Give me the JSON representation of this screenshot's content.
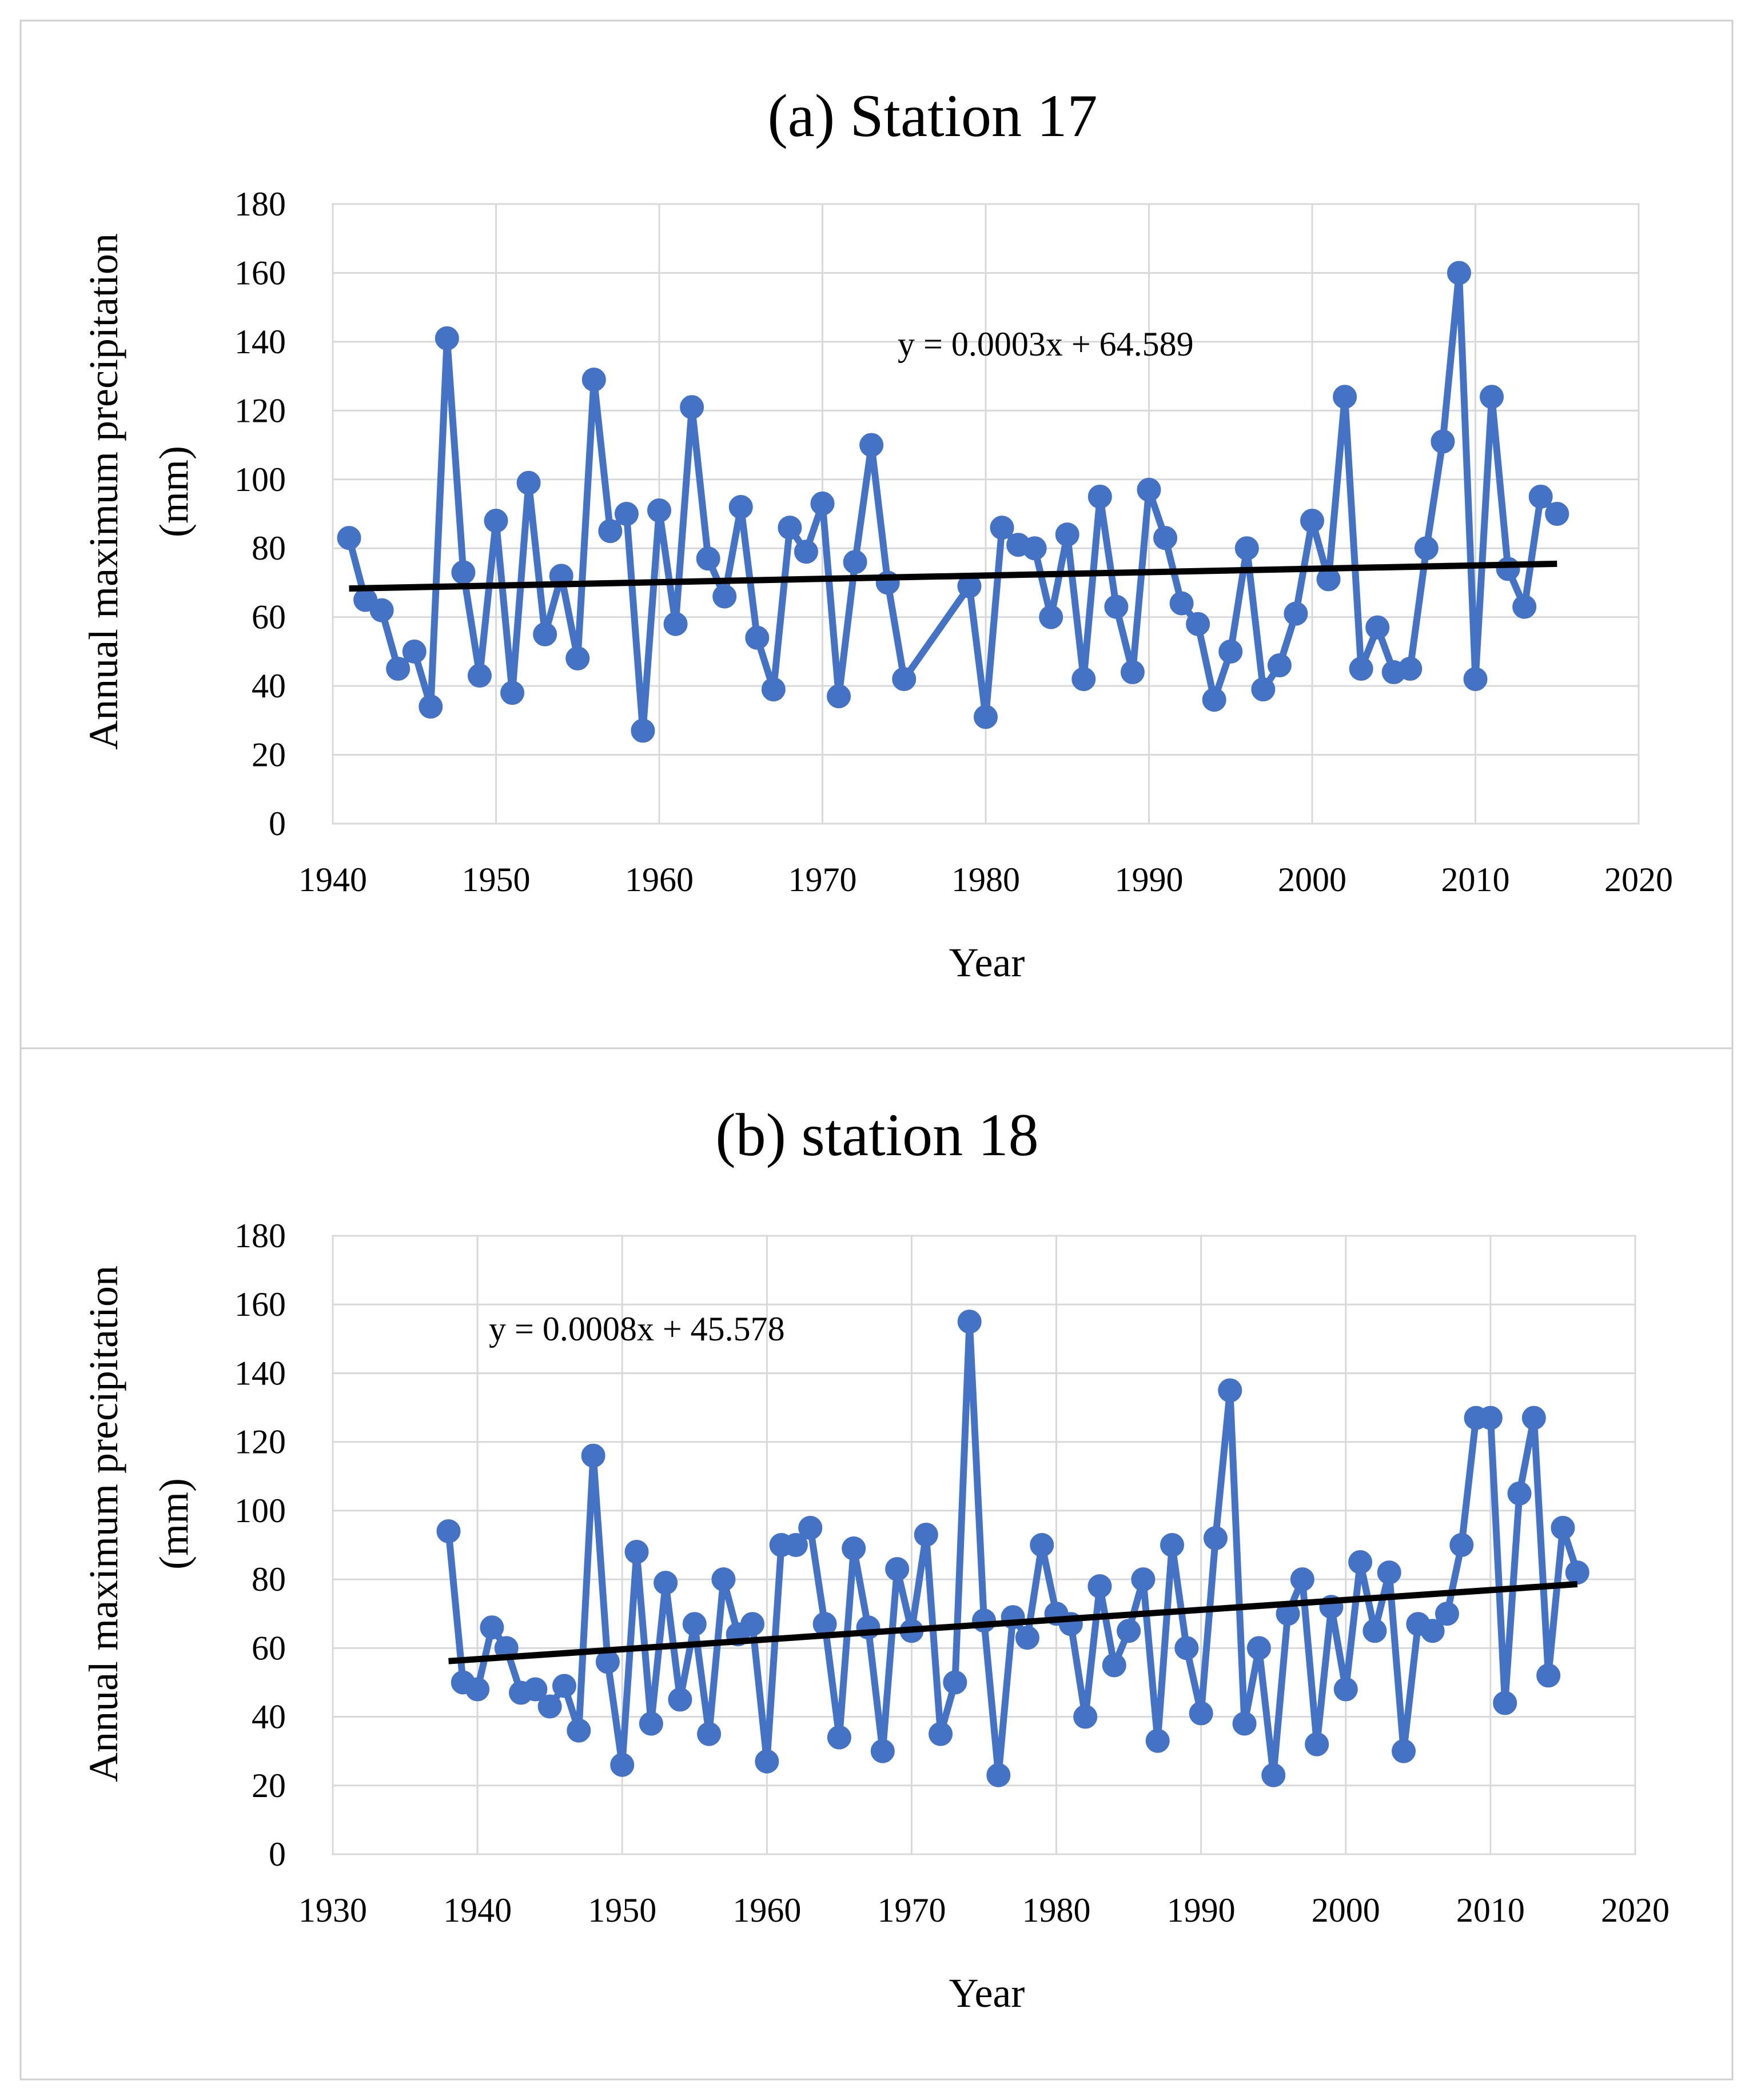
{
  "chart_data": [
    {
      "type": "line",
      "title": "(a) Station 17",
      "xlabel": "Year",
      "ylabel": [
        "Annual maximum precipitation",
        "(mm)"
      ],
      "xlim": [
        1940,
        2020
      ],
      "ylim": [
        0,
        180
      ],
      "xticks": [
        "1940",
        "1950",
        "1960",
        "1970",
        "1980",
        "1990",
        "2000",
        "2010",
        "2020"
      ],
      "yticks": [
        "0",
        "20",
        "40",
        "60",
        "80",
        "100",
        "120",
        "140",
        "160",
        "180"
      ],
      "grid": true,
      "legend": "none",
      "series_color": "#4472c4",
      "trend_color": "#000000",
      "trend": {
        "equation": "y = 0.0003x + 64.589",
        "x": [
          1941,
          2015
        ],
        "y": [
          68.3,
          75.5
        ]
      },
      "series": [
        {
          "x": [
            1941,
            1942,
            1943,
            1944,
            1945,
            1946,
            1947,
            1948,
            1949,
            1950,
            1951,
            1952,
            1953,
            1954,
            1955,
            1956,
            1957,
            1958,
            1959,
            1960,
            1961,
            1962,
            1963,
            1964,
            1965,
            1966,
            1967,
            1968,
            1969,
            1970,
            1971,
            1972,
            1973,
            1974,
            1975,
            1979,
            1980,
            1981,
            1982,
            1983,
            1984,
            1985,
            1986,
            1987,
            1988,
            1989,
            1990,
            1991,
            1992,
            1993,
            1994,
            1995,
            1996,
            1997,
            1998,
            1999,
            2000,
            2001,
            2002,
            2003,
            2004,
            2005,
            2006,
            2007,
            2008,
            2009,
            2010,
            2011,
            2012,
            2013,
            2014,
            2015
          ],
          "y": [
            83,
            65,
            62,
            45,
            50,
            34,
            141,
            73,
            43,
            88,
            38,
            99,
            55,
            72,
            48,
            129,
            85,
            90,
            27,
            91,
            58,
            121,
            77,
            66,
            92,
            54,
            39,
            86,
            79,
            93,
            37,
            76,
            110,
            70,
            42,
            69,
            31,
            86,
            81,
            80,
            60,
            84,
            42,
            95,
            63,
            44,
            97,
            83,
            64,
            58,
            36,
            50,
            80,
            39,
            46,
            61,
            88,
            71,
            124,
            45,
            57,
            44,
            45,
            80,
            111,
            160,
            42,
            124,
            74,
            63,
            95,
            90
          ]
        }
      ]
    },
    {
      "type": "line",
      "title": "(b) station 18",
      "xlabel": "Year",
      "ylabel": [
        "Annual maximum precipitation",
        "(mm)"
      ],
      "xlim": [
        1930,
        2020
      ],
      "ylim": [
        0,
        180
      ],
      "xticks": [
        "1930",
        "1940",
        "1950",
        "1960",
        "1970",
        "1980",
        "1990",
        "2000",
        "2010",
        "2020"
      ],
      "yticks": [
        "0",
        "20",
        "40",
        "60",
        "80",
        "100",
        "120",
        "140",
        "160",
        "180"
      ],
      "grid": true,
      "legend": "none",
      "series_color": "#4472c4",
      "trend_color": "#000000",
      "trend": {
        "equation": "y = 0.0008x + 45.578",
        "x": [
          1938,
          2016
        ],
        "y": [
          56.2,
          78.6
        ]
      },
      "series": [
        {
          "x": [
            1938,
            1939,
            1940,
            1941,
            1942,
            1943,
            1944,
            1945,
            1946,
            1947,
            1948,
            1949,
            1950,
            1951,
            1952,
            1953,
            1954,
            1955,
            1956,
            1957,
            1958,
            1959,
            1960,
            1961,
            1962,
            1963,
            1964,
            1965,
            1966,
            1967,
            1968,
            1969,
            1970,
            1971,
            1972,
            1973,
            1974,
            1975,
            1976,
            1977,
            1978,
            1979,
            1980,
            1981,
            1982,
            1983,
            1984,
            1985,
            1986,
            1987,
            1988,
            1989,
            1990,
            1991,
            1992,
            1993,
            1994,
            1995,
            1996,
            1997,
            1998,
            1999,
            2000,
            2001,
            2002,
            2003,
            2004,
            2005,
            2006,
            2007,
            2008,
            2009,
            2010,
            2011,
            2012,
            2013,
            2014,
            2015,
            2016
          ],
          "y": [
            94,
            50,
            48,
            66,
            60,
            47,
            48,
            43,
            49,
            36,
            116,
            56,
            26,
            88,
            38,
            79,
            45,
            67,
            35,
            80,
            64,
            67,
            27,
            90,
            90,
            95,
            67,
            34,
            89,
            66,
            30,
            83,
            65,
            93,
            35,
            50,
            155,
            68,
            23,
            69,
            63,
            90,
            70,
            67,
            40,
            78,
            55,
            65,
            80,
            33,
            90,
            60,
            41,
            92,
            135,
            38,
            60,
            23,
            70,
            80,
            32,
            72,
            48,
            85,
            65,
            82,
            30,
            67,
            65,
            70,
            90,
            127,
            127,
            44,
            105,
            127,
            52,
            95,
            82
          ]
        }
      ]
    }
  ]
}
